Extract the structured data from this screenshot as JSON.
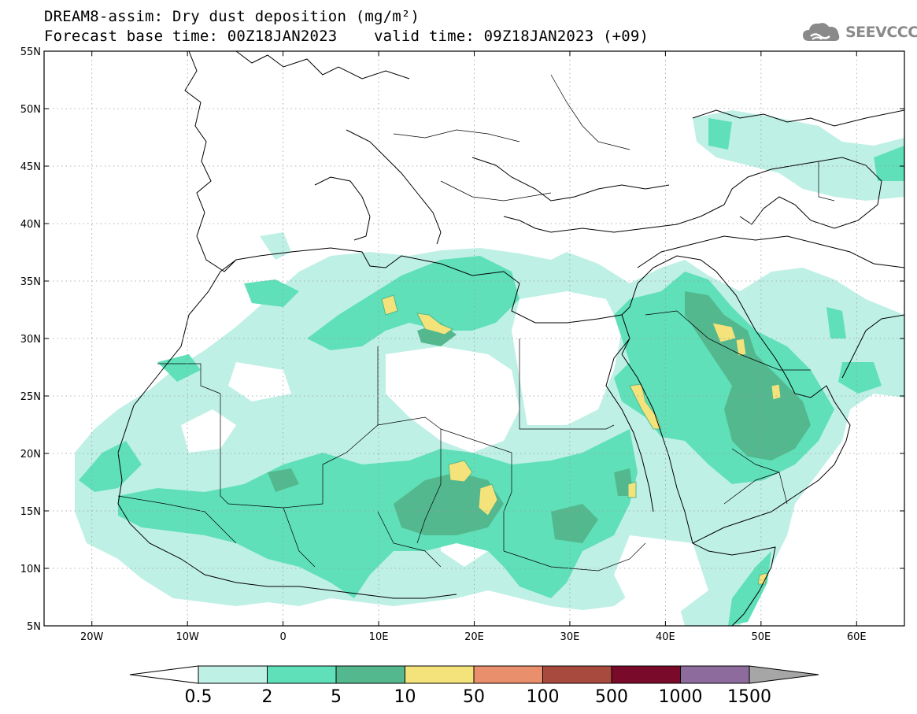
{
  "header": {
    "title_line1": "DREAM8-assim: Dry dust deposition (mg/m²)",
    "title_line2": "Forecast base time: 00Z18JAN2023    valid time: 09Z18JAN2023 (+09)",
    "logo_text": "SEEVCCC",
    "logo_icon": "cloud-icon"
  },
  "map": {
    "projection": "lat-lon",
    "lon_range": [
      -25,
      65
    ],
    "lat_range": [
      5,
      55
    ],
    "grid": true,
    "lat_labels": [
      "55N",
      "50N",
      "45N",
      "40N",
      "35N",
      "30N",
      "25N",
      "20N",
      "15N",
      "10N",
      "5N"
    ],
    "lat_values": [
      55,
      50,
      45,
      40,
      35,
      30,
      25,
      20,
      15,
      10,
      5
    ],
    "lon_labels": [
      "20W",
      "10W",
      "0",
      "10E",
      "20E",
      "30E",
      "40E",
      "50E",
      "60E"
    ],
    "lon_values": [
      -20,
      -10,
      0,
      10,
      20,
      30,
      40,
      50,
      60
    ]
  },
  "colorbar": {
    "levels": [
      "0.5",
      "2",
      "5",
      "10",
      "50",
      "100",
      "500",
      "1000",
      "1500"
    ],
    "colors": [
      "#bff0e6",
      "#5fe0b8",
      "#54b88e",
      "#f4e27a",
      "#ea8f6c",
      "#a84b3e",
      "#7a0a2a",
      "#8d6b9c",
      "#a6a6a6"
    ],
    "under_color": "#ffffff",
    "over_color": "#a6a6a6"
  },
  "colors": {
    "level_0_5": "#bff0e6",
    "level_2": "#5fe0b8",
    "level_5": "#54b88e",
    "level_10": "#f4e27a",
    "coast": "#000000"
  }
}
